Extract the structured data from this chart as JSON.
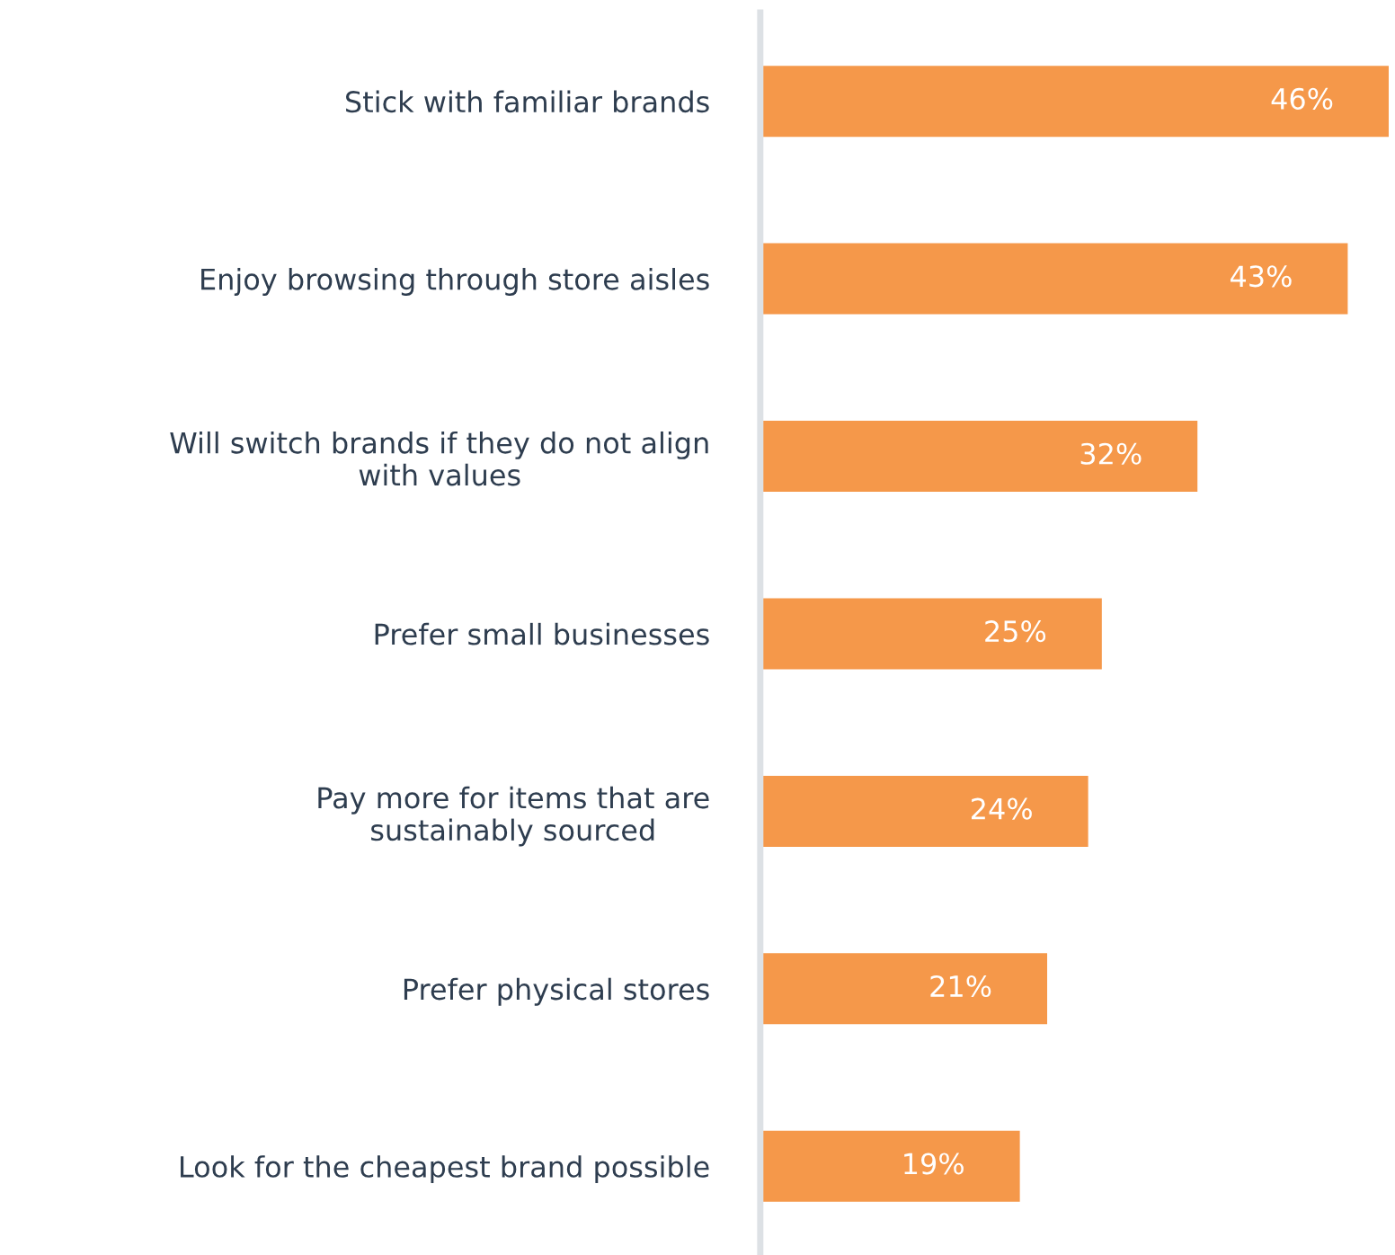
{
  "chart_data": {
    "type": "bar",
    "orientation": "horizontal",
    "categories": [
      "Stick with familiar brands",
      "Enjoy browsing through store aisles",
      "Will switch brands if they do not align\nwith values",
      "Prefer small businesses",
      "Pay more for items that are\nsustainably sourced",
      "Prefer physical stores",
      "Look for the cheapest brand possible"
    ],
    "values": [
      46,
      43,
      32,
      25,
      24,
      21,
      19
    ],
    "color": "#f5984a",
    "value_labels": [
      "46%",
      "43%",
      "32%",
      "25%",
      "24%",
      "21%",
      "19%"
    ],
    "xlim": [
      0,
      46
    ],
    "tick_labels": "y",
    "grid": false,
    "legend": false
  }
}
